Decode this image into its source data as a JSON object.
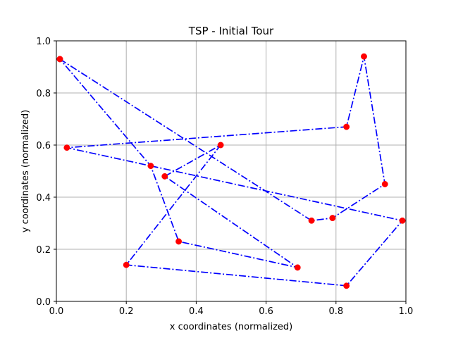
{
  "chart_data": {
    "type": "line",
    "title": "TSP - Initial Tour",
    "xlabel": "x coordinates (normalized)",
    "ylabel": "y coordinates (normalized)",
    "xlim": [
      0,
      1
    ],
    "ylim": [
      0,
      1
    ],
    "xticks": [
      "0.0",
      "0.2",
      "0.4",
      "0.6",
      "0.8",
      "1.0"
    ],
    "yticks": [
      "0.0",
      "0.2",
      "0.4",
      "0.6",
      "0.8",
      "1.0"
    ],
    "grid": true,
    "line_style": "dash-dot",
    "colors": {
      "line": "#0000ff",
      "marker": "#ff0000",
      "grid": "#b0b0b0"
    },
    "tour": [
      [
        0.01,
        0.93
      ],
      [
        0.73,
        0.31
      ],
      [
        0.79,
        0.32
      ],
      [
        0.94,
        0.45
      ],
      [
        0.88,
        0.94
      ],
      [
        0.83,
        0.67
      ],
      [
        0.03,
        0.59
      ],
      [
        0.99,
        0.31
      ],
      [
        0.83,
        0.06
      ],
      [
        0.2,
        0.14
      ],
      [
        0.47,
        0.6
      ],
      [
        0.31,
        0.48
      ],
      [
        0.69,
        0.13
      ],
      [
        0.35,
        0.23
      ],
      [
        0.27,
        0.52
      ],
      [
        0.01,
        0.93
      ]
    ]
  }
}
